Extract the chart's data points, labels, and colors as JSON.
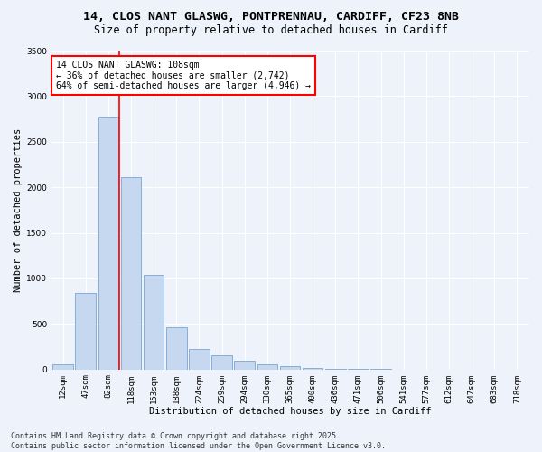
{
  "title_line1": "14, CLOS NANT GLASWG, PONTPRENNAU, CARDIFF, CF23 8NB",
  "title_line2": "Size of property relative to detached houses in Cardiff",
  "xlabel": "Distribution of detached houses by size in Cardiff",
  "ylabel": "Number of detached properties",
  "categories": [
    "12sqm",
    "47sqm",
    "82sqm",
    "118sqm",
    "153sqm",
    "188sqm",
    "224sqm",
    "259sqm",
    "294sqm",
    "330sqm",
    "365sqm",
    "400sqm",
    "436sqm",
    "471sqm",
    "506sqm",
    "541sqm",
    "577sqm",
    "612sqm",
    "647sqm",
    "683sqm",
    "718sqm"
  ],
  "values": [
    55,
    840,
    2780,
    2110,
    1040,
    460,
    230,
    160,
    95,
    60,
    38,
    20,
    10,
    5,
    3,
    2,
    1,
    0,
    0,
    0,
    0
  ],
  "bar_color": "#c5d8f0",
  "bar_edge_color": "#6699cc",
  "vline_color": "red",
  "vline_x": 2.5,
  "annotation_text": "14 CLOS NANT GLASWG: 108sqm\n← 36% of detached houses are smaller (2,742)\n64% of semi-detached houses are larger (4,946) →",
  "annotation_box_color": "white",
  "annotation_box_edge_color": "red",
  "ylim": [
    0,
    3500
  ],
  "yticks": [
    0,
    500,
    1000,
    1500,
    2000,
    2500,
    3000,
    3500
  ],
  "bg_color": "#eef2fb",
  "footer_line1": "Contains HM Land Registry data © Crown copyright and database right 2025.",
  "footer_line2": "Contains public sector information licensed under the Open Government Licence v3.0.",
  "title_fontsize": 9.5,
  "subtitle_fontsize": 8.5,
  "axis_label_fontsize": 7.5,
  "tick_fontsize": 6.5,
  "annotation_fontsize": 7,
  "footer_fontsize": 6
}
